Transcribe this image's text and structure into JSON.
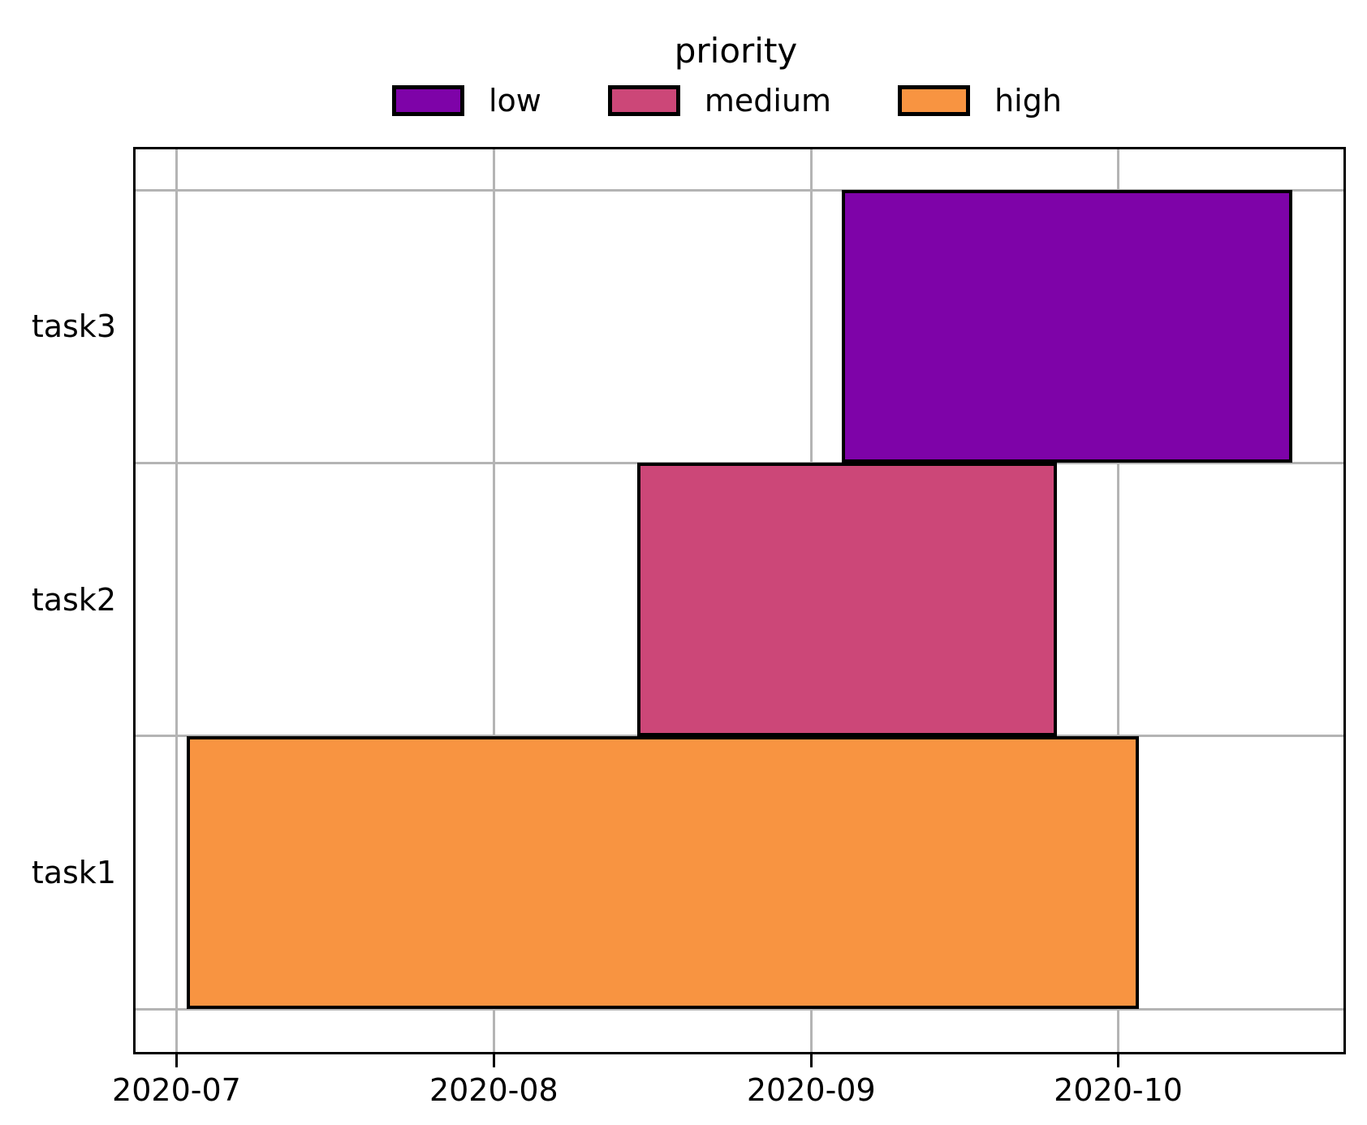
{
  "legend": {
    "title": "priority",
    "entries": [
      {
        "label": "low",
        "color": "#7e03a8"
      },
      {
        "label": "medium",
        "color": "#cc4778"
      },
      {
        "label": "high",
        "color": "#f89441"
      }
    ]
  },
  "chart_data": {
    "type": "bar",
    "subtype": "gantt",
    "orientation": "horizontal",
    "title": "",
    "xlabel": "",
    "ylabel": "",
    "legend_title": "priority",
    "legend_position": "top",
    "grid": true,
    "grid_color": "#b4b4b4",
    "bar_edge_color": "#000000",
    "background_color": "#ffffff",
    "y_labels": [
      "task3",
      "task2",
      "task1"
    ],
    "x_tick_labels": [
      "2020-07",
      "2020-08",
      "2020-09",
      "2020-10"
    ],
    "x_tick_dates": [
      "2020-07-01",
      "2020-08-01",
      "2020-09-01",
      "2020-10-01"
    ],
    "xlim": [
      "2020-06-27",
      "2020-10-23"
    ],
    "tasks": [
      {
        "name": "task1",
        "start": "2020-07-02",
        "end": "2020-10-03",
        "priority": "high"
      },
      {
        "name": "task2",
        "start": "2020-08-15",
        "end": "2020-09-25",
        "priority": "medium"
      },
      {
        "name": "task3",
        "start": "2020-09-04",
        "end": "2020-10-18",
        "priority": "low"
      }
    ]
  }
}
